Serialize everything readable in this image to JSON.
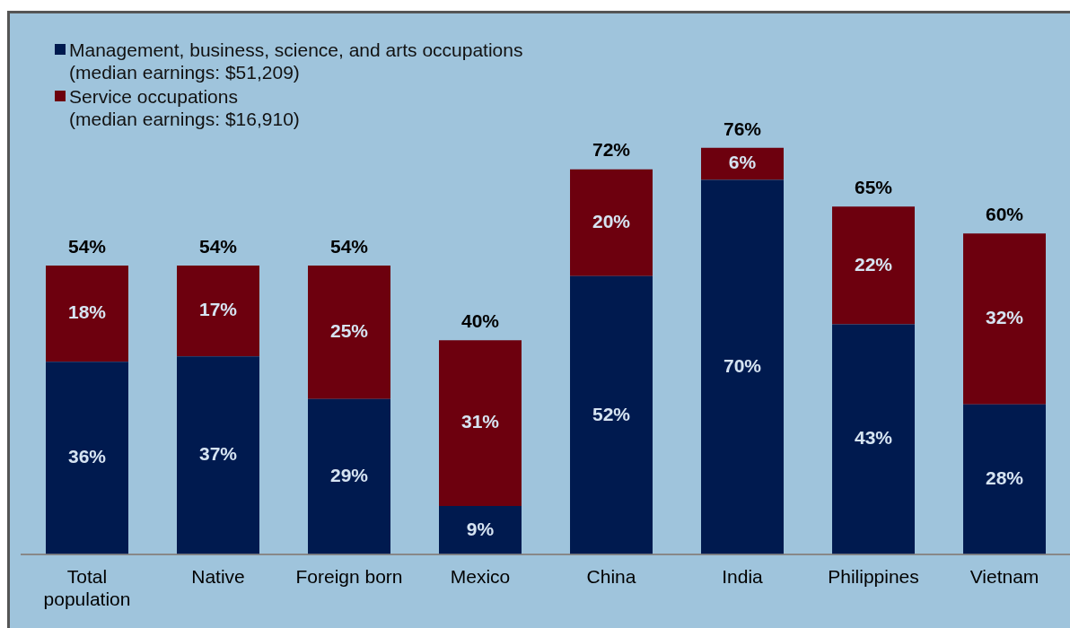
{
  "chart_data": {
    "type": "bar",
    "stacked": true,
    "tick_labels": "x",
    "grid": false,
    "legend": "top left",
    "categories": [
      "Total population",
      "Native",
      "Foreign born",
      "Mexico",
      "China",
      "India",
      "Philippines",
      "Vietnam"
    ],
    "series": [
      {
        "name": "Management, business, science, and arts occupations (median earnings: $51,209)",
        "color": "#001a4f",
        "values": [
          36,
          37,
          29,
          9,
          52,
          70,
          43,
          28
        ],
        "value_labels": [
          "36%",
          "37%",
          "29%",
          "9%",
          "52%",
          "70%",
          "43%",
          "28%"
        ]
      },
      {
        "name": "Service occupations (median earnings: $16,910)",
        "color": "#6d000e",
        "values": [
          18,
          17,
          25,
          31,
          20,
          6,
          22,
          32
        ],
        "value_labels": [
          "18%",
          "17%",
          "25%",
          "31%",
          "20%",
          "6%",
          "22%",
          "32%"
        ]
      }
    ],
    "totals": [
      "54%",
      "54%",
      "54%",
      "40%",
      "72%",
      "76%",
      "65%",
      "60%"
    ]
  }
}
